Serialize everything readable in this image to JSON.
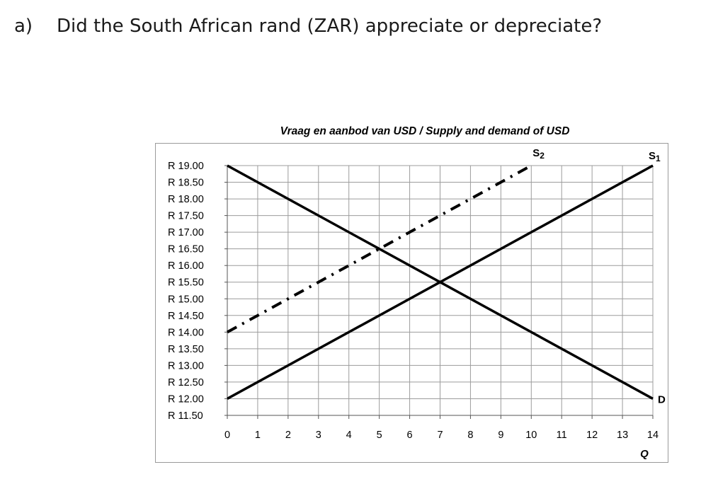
{
  "question": {
    "number": "a)",
    "text": "Did the South African rand (ZAR) appreciate or depreciate?"
  },
  "chart_data": {
    "type": "line",
    "title": "Vraag en aanbod van USD / Supply and demand of USD",
    "xlabel": "Q",
    "ylabel": "",
    "xlim": [
      0,
      14
    ],
    "ylim": [
      11.5,
      19.0
    ],
    "grid": true,
    "x_ticks": [
      0,
      1,
      2,
      3,
      4,
      5,
      6,
      7,
      8,
      9,
      10,
      11,
      12,
      13,
      14
    ],
    "x_tick_labels": [
      "0",
      "1",
      "2",
      "3",
      "4",
      "5",
      "6",
      "7",
      "8",
      "9",
      "10",
      "11",
      "12",
      "13",
      "14"
    ],
    "y_ticks": [
      11.5,
      12.0,
      12.5,
      13.0,
      13.5,
      14.0,
      14.5,
      15.0,
      15.5,
      16.0,
      16.5,
      17.0,
      17.5,
      18.0,
      18.5,
      19.0
    ],
    "y_tick_labels": [
      "R 11.50",
      "R 12.00",
      "R 12.50",
      "R 13.00",
      "R 13.50",
      "R 14.00",
      "R 14.50",
      "R 15.00",
      "R 15.50",
      "R 16.00",
      "R 16.50",
      "R 17.00",
      "R 17.50",
      "R 18.00",
      "R 18.50",
      "R 19.00"
    ],
    "series": [
      {
        "name": "D",
        "style": "solid",
        "color": "#000000",
        "x": [
          0,
          14
        ],
        "y": [
          19.0,
          12.0
        ]
      },
      {
        "name": "S1",
        "style": "solid",
        "color": "#000000",
        "x": [
          0,
          14
        ],
        "y": [
          12.0,
          19.0
        ]
      },
      {
        "name": "S2",
        "style": "dash-dot",
        "color": "#000000",
        "x": [
          0,
          10
        ],
        "y": [
          14.0,
          19.0
        ]
      }
    ]
  }
}
